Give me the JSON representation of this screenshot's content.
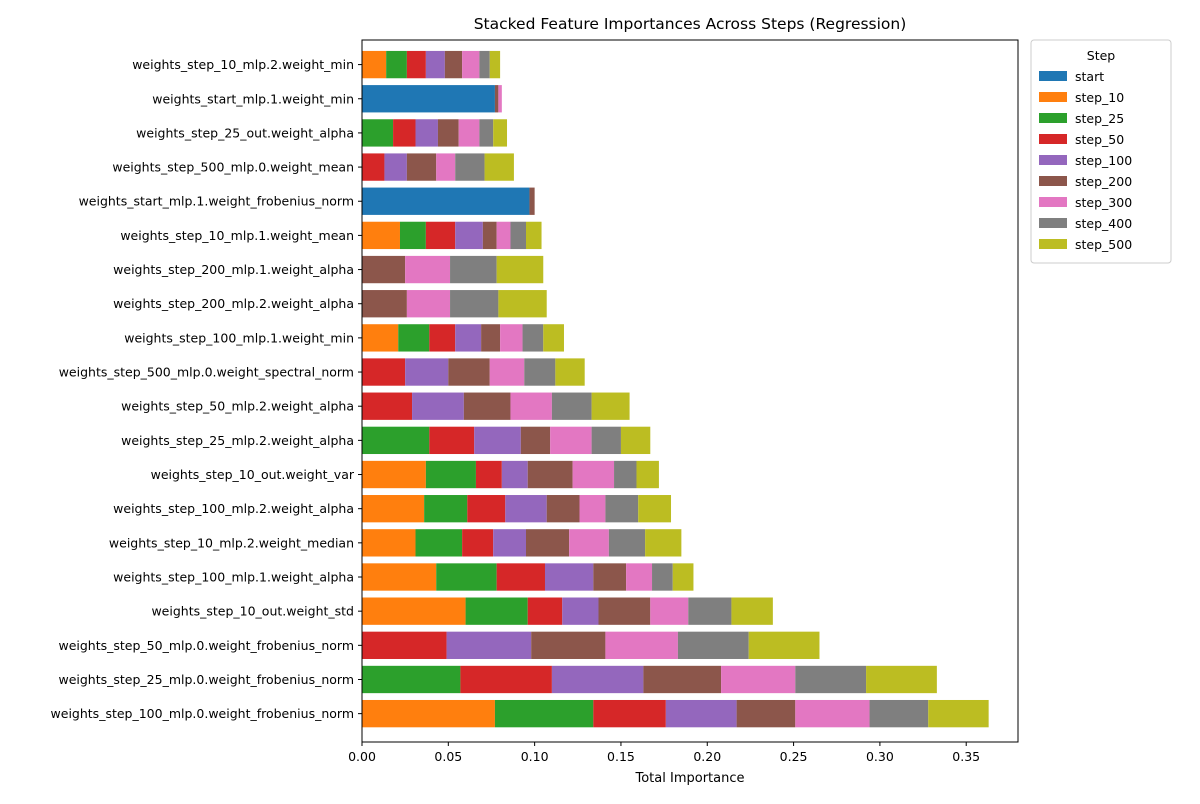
{
  "chart_data": {
    "type": "bar",
    "orientation": "horizontal",
    "stacked": true,
    "title": "Stacked Feature Importances Across Steps (Regression)",
    "xlabel": "Total Importance",
    "ylabel": "",
    "xlim": [
      0,
      0.38
    ],
    "xticks": [
      0.0,
      0.05,
      0.1,
      0.15,
      0.2,
      0.25,
      0.3,
      0.35
    ],
    "xtick_labels": [
      "0.00",
      "0.05",
      "0.10",
      "0.15",
      "0.20",
      "0.25",
      "0.30",
      "0.35"
    ],
    "grid": false,
    "legend": {
      "title": "Step",
      "placement": "outside-top-right"
    },
    "categories": [
      "weights_step_10_mlp.2.weight_min",
      "weights_start_mlp.1.weight_min",
      "weights_step_25_out.weight_alpha",
      "weights_step_500_mlp.0.weight_mean",
      "weights_start_mlp.1.weight_frobenius_norm",
      "weights_step_10_mlp.1.weight_mean",
      "weights_step_200_mlp.1.weight_alpha",
      "weights_step_200_mlp.2.weight_alpha",
      "weights_step_100_mlp.1.weight_min",
      "weights_step_500_mlp.0.weight_spectral_norm",
      "weights_step_50_mlp.2.weight_alpha",
      "weights_step_25_mlp.2.weight_alpha",
      "weights_step_10_out.weight_var",
      "weights_step_100_mlp.2.weight_alpha",
      "weights_step_10_mlp.2.weight_median",
      "weights_step_100_mlp.1.weight_alpha",
      "weights_step_10_out.weight_std",
      "weights_step_50_mlp.0.weight_frobenius_norm",
      "weights_step_25_mlp.0.weight_frobenius_norm",
      "weights_step_100_mlp.0.weight_frobenius_norm"
    ],
    "series": [
      {
        "name": "start",
        "color": "#1f77b4",
        "values": [
          0,
          0.077,
          0,
          0,
          0.097,
          0,
          0,
          0,
          0,
          0,
          0,
          0,
          0,
          0,
          0,
          0,
          0,
          0,
          0,
          0
        ]
      },
      {
        "name": "step_10",
        "color": "#ff7f0e",
        "values": [
          0.014,
          0,
          0,
          0,
          0,
          0.022,
          0,
          0,
          0.021,
          0,
          0,
          0,
          0.037,
          0.036,
          0.031,
          0.043,
          0.06,
          0,
          0,
          0.077
        ]
      },
      {
        "name": "step_25",
        "color": "#2ca02c",
        "values": [
          0.012,
          0,
          0.018,
          0,
          0,
          0.015,
          0,
          0,
          0.018,
          0,
          0,
          0.039,
          0.029,
          0.025,
          0.027,
          0.035,
          0.036,
          0,
          0.057,
          0.057
        ]
      },
      {
        "name": "step_50",
        "color": "#d62728",
        "values": [
          0.011,
          0,
          0.013,
          0.013,
          0,
          0.017,
          0,
          0,
          0.015,
          0.025,
          0.029,
          0.026,
          0.015,
          0.022,
          0.018,
          0.028,
          0.02,
          0.049,
          0.053,
          0.042
        ]
      },
      {
        "name": "step_100",
        "color": "#9467bd",
        "values": [
          0.011,
          0,
          0.013,
          0.013,
          0,
          0.016,
          0,
          0,
          0.015,
          0.025,
          0.03,
          0.027,
          0.015,
          0.024,
          0.019,
          0.028,
          0.021,
          0.049,
          0.053,
          0.041
        ]
      },
      {
        "name": "step_200",
        "color": "#8c564b",
        "values": [
          0.01,
          0.002,
          0.012,
          0.017,
          0.003,
          0.008,
          0.025,
          0.026,
          0.011,
          0.024,
          0.027,
          0.017,
          0.026,
          0.019,
          0.025,
          0.019,
          0.03,
          0.043,
          0.045,
          0.034
        ]
      },
      {
        "name": "step_300",
        "color": "#e377c2",
        "values": [
          0.01,
          0.002,
          0.012,
          0.011,
          0,
          0.008,
          0.026,
          0.025,
          0.013,
          0.02,
          0.024,
          0.024,
          0.024,
          0.015,
          0.023,
          0.015,
          0.022,
          0.042,
          0.043,
          0.043
        ]
      },
      {
        "name": "step_400",
        "color": "#7f7f7f",
        "values": [
          0.006,
          0,
          0.008,
          0.017,
          0,
          0.009,
          0.027,
          0.028,
          0.012,
          0.018,
          0.023,
          0.017,
          0.013,
          0.019,
          0.021,
          0.012,
          0.025,
          0.041,
          0.041,
          0.034
        ]
      },
      {
        "name": "step_500",
        "color": "#bcbd22",
        "values": [
          0.006,
          0,
          0.008,
          0.017,
          0,
          0.009,
          0.027,
          0.028,
          0.012,
          0.017,
          0.022,
          0.017,
          0.013,
          0.019,
          0.021,
          0.012,
          0.024,
          0.041,
          0.041,
          0.035
        ]
      }
    ]
  }
}
